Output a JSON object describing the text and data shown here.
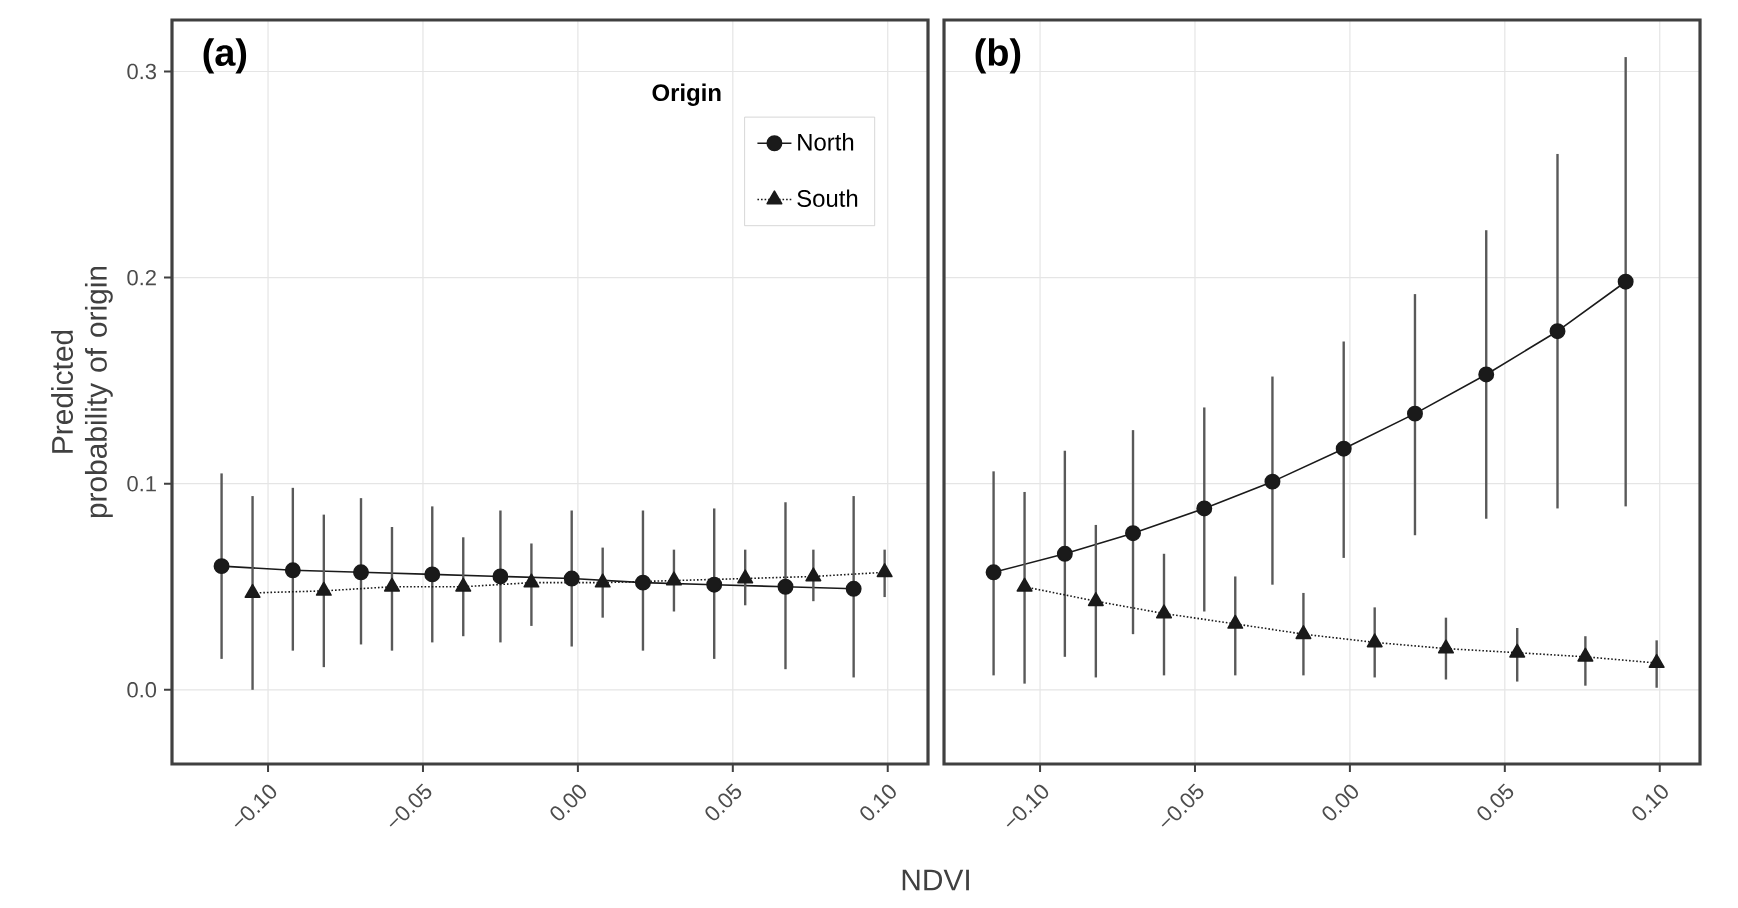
{
  "chart_data": [
    {
      "type": "line",
      "title": "(a)",
      "xlabel": "NDVI",
      "ylabel": "Predicted probability of origin",
      "legend_title": "Origin",
      "legend": "top right",
      "grid": true,
      "xlim": [
        -0.131,
        0.113
      ],
      "ylim": [
        -0.036,
        0.325
      ],
      "xticks": [
        {
          "value": -0.1,
          "label": "−0.10"
        },
        {
          "value": -0.05,
          "label": "−0.05"
        },
        {
          "value": 0,
          "label": "0.00"
        },
        {
          "value": 0.05,
          "label": "0.05"
        },
        {
          "value": 0.1,
          "label": "0.10"
        }
      ],
      "yticks": [
        {
          "value": 0,
          "label": "0.0"
        },
        {
          "value": 0.1,
          "label": "0.1"
        },
        {
          "value": 0.2,
          "label": "0.2"
        },
        {
          "value": 0.3,
          "label": "0.3"
        }
      ],
      "series": [
        {
          "name": "North",
          "color": "#1a1a1a",
          "marker": "circle",
          "line_style": "solid",
          "x": [
            -0.115,
            -0.092,
            -0.07,
            -0.047,
            -0.025,
            -0.002,
            0.021,
            0.044,
            0.067,
            0.089
          ],
          "values": [
            0.06,
            0.058,
            0.057,
            0.056,
            0.055,
            0.054,
            0.052,
            0.051,
            0.05,
            0.049
          ],
          "errors": [
            [
              0.015,
              0.105
            ],
            [
              0.019,
              0.098
            ],
            [
              0.022,
              0.093
            ],
            [
              0.023,
              0.089
            ],
            [
              0.023,
              0.087
            ],
            [
              0.021,
              0.087
            ],
            [
              0.019,
              0.087
            ],
            [
              0.015,
              0.088
            ],
            [
              0.01,
              0.091
            ],
            [
              0.006,
              0.094
            ]
          ]
        },
        {
          "name": "South",
          "color": "#1a1a1a",
          "marker": "triangle",
          "line_style": "dotted",
          "x": [
            -0.105,
            -0.082,
            -0.06,
            -0.037,
            -0.015,
            0.008,
            0.031,
            0.054,
            0.076,
            0.099
          ],
          "values": [
            0.047,
            0.048,
            0.05,
            0.05,
            0.052,
            0.052,
            0.053,
            0.054,
            0.055,
            0.057
          ],
          "errors": [
            [
              0.0,
              0.094
            ],
            [
              0.011,
              0.085
            ],
            [
              0.019,
              0.079
            ],
            [
              0.026,
              0.074
            ],
            [
              0.031,
              0.071
            ],
            [
              0.035,
              0.069
            ],
            [
              0.038,
              0.068
            ],
            [
              0.041,
              0.068
            ],
            [
              0.043,
              0.068
            ],
            [
              0.045,
              0.068
            ]
          ]
        }
      ]
    },
    {
      "type": "line",
      "title": "(b)",
      "legend": false,
      "grid": true,
      "tick_labels": "x",
      "xlim": [
        -0.131,
        0.113
      ],
      "ylim": [
        -0.036,
        0.325
      ],
      "xticks": [
        {
          "value": -0.1,
          "label": "−0.10"
        },
        {
          "value": -0.05,
          "label": "−0.05"
        },
        {
          "value": 0,
          "label": "0.00"
        },
        {
          "value": 0.05,
          "label": "0.05"
        },
        {
          "value": 0.1,
          "label": "0.10"
        }
      ],
      "yticks": [
        {
          "value": 0,
          "label": null
        },
        {
          "value": 0.1,
          "label": null
        },
        {
          "value": 0.2,
          "label": null
        },
        {
          "value": 0.3,
          "label": null
        }
      ],
      "series": [
        {
          "color": "#1a1a1a",
          "marker": "circle",
          "line_style": "solid",
          "x": [
            -0.115,
            -0.092,
            -0.07,
            -0.047,
            -0.025,
            -0.002,
            0.021,
            0.044,
            0.067,
            0.089
          ],
          "values": [
            0.057,
            0.066,
            0.076,
            0.088,
            0.101,
            0.117,
            0.134,
            0.153,
            0.174,
            0.198
          ],
          "errors": [
            [
              0.007,
              0.106
            ],
            [
              0.016,
              0.116
            ],
            [
              0.027,
              0.126
            ],
            [
              0.038,
              0.137
            ],
            [
              0.051,
              0.152
            ],
            [
              0.064,
              0.169
            ],
            [
              0.075,
              0.192
            ],
            [
              0.083,
              0.223
            ],
            [
              0.088,
              0.26
            ],
            [
              0.089,
              0.307
            ]
          ]
        },
        {
          "color": "#1a1a1a",
          "marker": "triangle",
          "line_style": "dotted",
          "x": [
            -0.105,
            -0.082,
            -0.06,
            -0.037,
            -0.015,
            0.008,
            0.031,
            0.054,
            0.076,
            0.099
          ],
          "values": [
            0.05,
            0.043,
            0.037,
            0.032,
            0.027,
            0.023,
            0.02,
            0.018,
            0.016,
            0.013
          ],
          "errors": [
            [
              0.003,
              0.096
            ],
            [
              0.006,
              0.08
            ],
            [
              0.007,
              0.066
            ],
            [
              0.007,
              0.055
            ],
            [
              0.007,
              0.047
            ],
            [
              0.006,
              0.04
            ],
            [
              0.005,
              0.035
            ],
            [
              0.004,
              0.03
            ],
            [
              0.002,
              0.026
            ],
            [
              0.001,
              0.024
            ]
          ]
        }
      ]
    }
  ]
}
